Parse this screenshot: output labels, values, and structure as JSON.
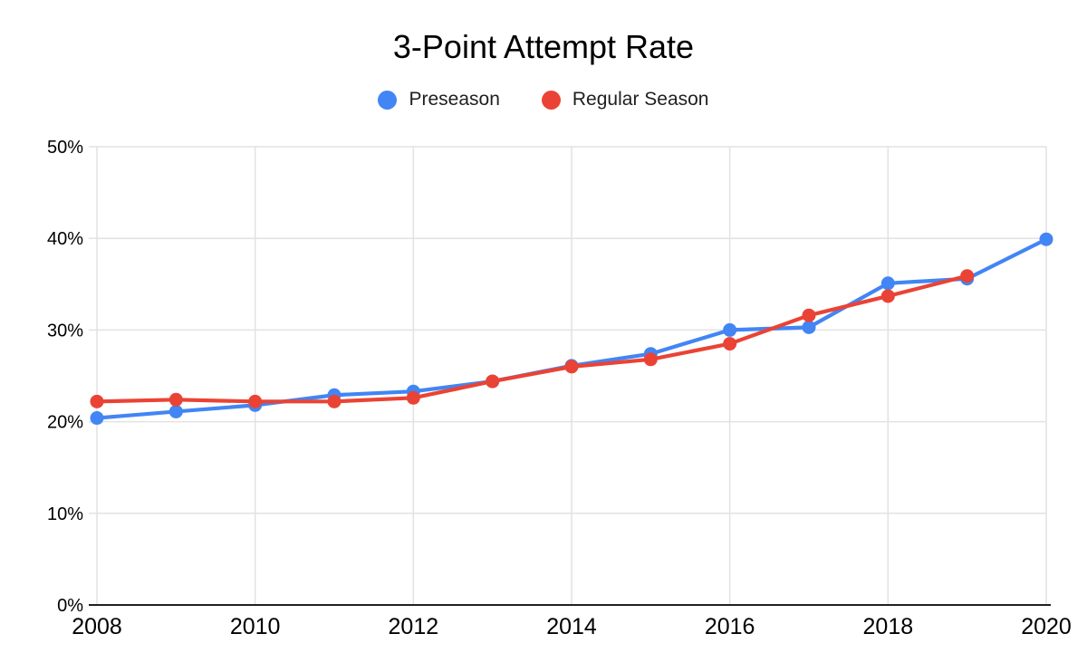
{
  "page": {
    "background": "#ffffff"
  },
  "chart_data": {
    "type": "line",
    "title": "3-Point Attempt Rate",
    "xlabel": "",
    "ylabel": "",
    "xlim": [
      2008,
      2020
    ],
    "ylim": [
      0,
      50
    ],
    "grid": "on",
    "legend_position": "top",
    "x": [
      2008,
      2009,
      2010,
      2011,
      2012,
      2013,
      2014,
      2015,
      2016,
      2017,
      2018,
      2019,
      2020
    ],
    "x_ticks": [
      {
        "value": 2008,
        "label": "2008"
      },
      {
        "value": 2010,
        "label": "2010"
      },
      {
        "value": 2012,
        "label": "2012"
      },
      {
        "value": 2014,
        "label": "2014"
      },
      {
        "value": 2016,
        "label": "2016"
      },
      {
        "value": 2018,
        "label": "2018"
      },
      {
        "value": 2020,
        "label": "2020"
      }
    ],
    "y_ticks": [
      {
        "value": 0,
        "label": "0%"
      },
      {
        "value": 10,
        "label": "10%"
      },
      {
        "value": 20,
        "label": "20%"
      },
      {
        "value": 30,
        "label": "30%"
      },
      {
        "value": 40,
        "label": "40%"
      },
      {
        "value": 50,
        "label": "50%"
      }
    ],
    "series": [
      {
        "name": "Preseason",
        "color": "#4285F4",
        "values": [
          20.4,
          21.1,
          21.8,
          22.9,
          23.3,
          24.4,
          26.1,
          27.4,
          30.0,
          30.3,
          35.1,
          35.6,
          39.9
        ]
      },
      {
        "name": "Regular Season",
        "color": "#EA4335",
        "values": [
          22.2,
          22.4,
          22.2,
          22.2,
          22.6,
          24.4,
          26.0,
          26.8,
          28.5,
          31.6,
          33.7,
          35.9,
          null
        ]
      }
    ],
    "colors": {
      "grid": "#e2e2e2",
      "axis": "#212121",
      "text": "#000000"
    }
  }
}
